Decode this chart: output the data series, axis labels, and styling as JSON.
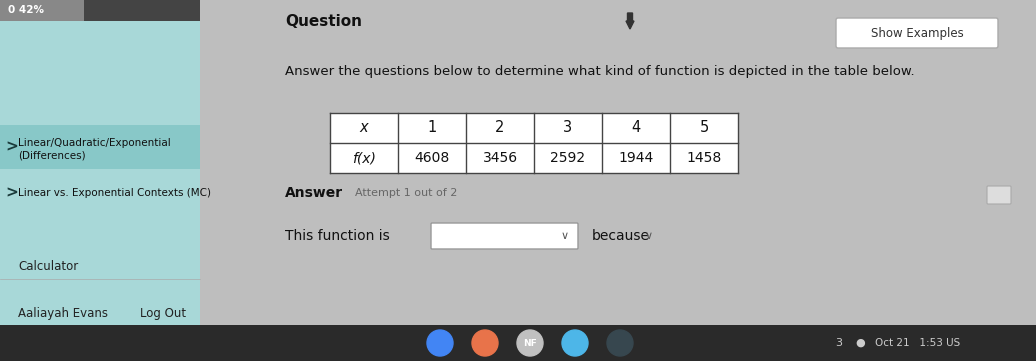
{
  "bg_color": "#bebebe",
  "left_panel_bg": "#a8d8d8",
  "left_panel_selected_bg": "#88c8c8",
  "progress_text": "0 42%",
  "question_title": "Question",
  "show_examples_text": "Show Examples",
  "main_text": "Answer the questions below to determine what kind of function is depicted in the table below.",
  "table_x_label": "x",
  "table_fx_label": "f(x)",
  "table_x_values": [
    "1",
    "2",
    "3",
    "4",
    "5"
  ],
  "table_fx_values": [
    "4608",
    "3456",
    "2592",
    "1944",
    "1458"
  ],
  "answer_label": "Answer",
  "attempt_text": "Attempt 1 out of 2",
  "this_function_text": "This function is",
  "because_text": "because",
  "bottom_left_text": "Calculator",
  "user_name": "Aaliayah Evans",
  "logout_text": "Log Out",
  "bottom_right_text": "Oct 21   1:53 US",
  "table_border_color": "#444444",
  "sidebar_item1": "Linear/Quadratic/Exponential\n(Differences)",
  "sidebar_item2": "Linear vs. Exponential Contexts (MC)"
}
